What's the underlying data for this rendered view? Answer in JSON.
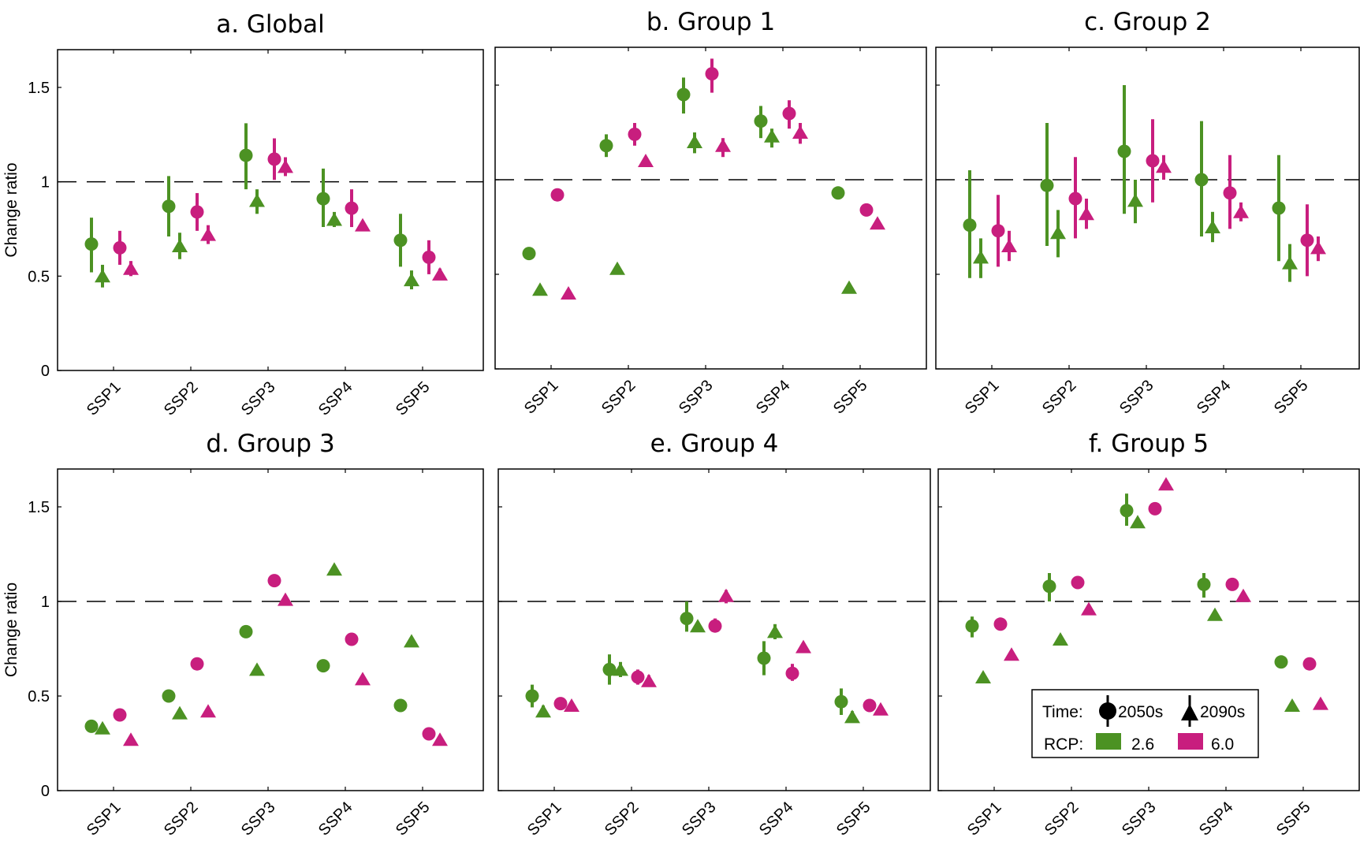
{
  "chart_data": [
    {
      "type": "scatter",
      "title": "a. Global",
      "ylabel": "Change ratio",
      "xlabel": "",
      "categories": [
        "SSP1",
        "SSP2",
        "SSP3",
        "SSP4",
        "SSP5"
      ],
      "ylim": [
        0,
        1.7
      ],
      "yticks": [
        0,
        0.5,
        1,
        1.5
      ],
      "ytick_labels": [
        "0",
        "0.5",
        "1",
        "1.5"
      ],
      "reference_line": 1,
      "series": [
        {
          "name": "RCP 2.6 2050s",
          "rcp": "2.6",
          "time": "2050s",
          "values": [
            0.67,
            0.87,
            1.14,
            0.91,
            0.69
          ],
          "low": [
            0.52,
            0.71,
            0.96,
            0.76,
            0.55
          ],
          "high": [
            0.81,
            1.03,
            1.31,
            1.07,
            0.83
          ]
        },
        {
          "name": "RCP 2.6 2090s",
          "rcp": "2.6",
          "time": "2090s",
          "values": [
            0.5,
            0.66,
            0.9,
            0.8,
            0.48
          ],
          "low": [
            0.44,
            0.59,
            0.83,
            0.76,
            0.43
          ],
          "high": [
            0.56,
            0.73,
            0.96,
            0.84,
            0.53
          ]
        },
        {
          "name": "RCP 6.0 2050s",
          "rcp": "6.0",
          "time": "2050s",
          "values": [
            0.65,
            0.84,
            1.12,
            0.86,
            0.6
          ],
          "low": [
            0.56,
            0.74,
            1.01,
            0.76,
            0.51
          ],
          "high": [
            0.74,
            0.94,
            1.23,
            0.96,
            0.69
          ]
        },
        {
          "name": "RCP 6.0 2090s",
          "rcp": "6.0",
          "time": "2090s",
          "values": [
            0.54,
            0.72,
            1.08,
            0.77,
            0.51
          ],
          "low": [
            0.5,
            0.67,
            1.03,
            0.75,
            0.49
          ],
          "high": [
            0.58,
            0.77,
            1.13,
            0.79,
            0.54
          ]
        }
      ]
    },
    {
      "type": "scatter",
      "title": "b. Group 1",
      "ylabel": "",
      "xlabel": "",
      "categories": [
        "SSP1",
        "SSP2",
        "SSP3",
        "SSP4",
        "SSP5"
      ],
      "ylim": [
        0,
        1.7
      ],
      "yticks": [
        0,
        0.5,
        1,
        1.5
      ],
      "ytick_labels": [],
      "reference_line": 1,
      "series": [
        {
          "name": "RCP 2.6 2050s",
          "rcp": "2.6",
          "time": "2050s",
          "values": [
            0.61,
            1.18,
            1.45,
            1.31,
            0.93
          ],
          "low": [
            null,
            1.12,
            1.35,
            1.22,
            null
          ],
          "high": [
            null,
            1.24,
            1.54,
            1.39,
            null
          ]
        },
        {
          "name": "RCP 2.6 2090s",
          "rcp": "2.6",
          "time": "2090s",
          "values": [
            0.42,
            0.53,
            1.2,
            1.23,
            0.43
          ],
          "low": [
            null,
            null,
            1.14,
            1.17,
            null
          ],
          "high": [
            null,
            null,
            1.25,
            1.27,
            null
          ]
        },
        {
          "name": "RCP 6.0 2050s",
          "rcp": "6.0",
          "time": "2050s",
          "values": [
            0.92,
            1.24,
            1.56,
            1.35,
            0.84
          ],
          "low": [
            null,
            1.18,
            1.46,
            1.27,
            null
          ],
          "high": [
            null,
            1.3,
            1.64,
            1.42,
            null
          ]
        },
        {
          "name": "RCP 6.0 2090s",
          "rcp": "6.0",
          "time": "2090s",
          "values": [
            0.4,
            1.1,
            1.18,
            1.25,
            0.77
          ],
          "low": [
            null,
            null,
            1.12,
            1.19,
            null
          ],
          "high": [
            null,
            null,
            1.22,
            1.3,
            null
          ]
        }
      ]
    },
    {
      "type": "scatter",
      "title": "c. Group 2",
      "ylabel": "",
      "xlabel": "",
      "categories": [
        "SSP1",
        "SSP2",
        "SSP3",
        "SSP4",
        "SSP5"
      ],
      "ylim": [
        0,
        1.7
      ],
      "yticks": [
        0,
        0.5,
        1,
        1.5
      ],
      "ytick_labels": [],
      "reference_line": 1,
      "series": [
        {
          "name": "RCP 2.6 2050s",
          "rcp": "2.6",
          "time": "2050s",
          "values": [
            0.76,
            0.97,
            1.15,
            1.0,
            0.85
          ],
          "low": [
            0.48,
            0.65,
            0.82,
            0.7,
            0.57
          ],
          "high": [
            1.05,
            1.3,
            1.5,
            1.31,
            1.13
          ]
        },
        {
          "name": "RCP 2.6 2090s",
          "rcp": "2.6",
          "time": "2090s",
          "values": [
            0.59,
            0.72,
            0.89,
            0.75,
            0.56
          ],
          "low": [
            0.48,
            0.59,
            0.77,
            0.67,
            0.46
          ],
          "high": [
            0.69,
            0.84,
            1.0,
            0.83,
            0.66
          ]
        },
        {
          "name": "RCP 6.0 2050s",
          "rcp": "6.0",
          "time": "2050s",
          "values": [
            0.73,
            0.9,
            1.1,
            0.93,
            0.68
          ],
          "low": [
            0.54,
            0.69,
            0.88,
            0.74,
            0.49
          ],
          "high": [
            0.92,
            1.12,
            1.32,
            1.13,
            0.87
          ]
        },
        {
          "name": "RCP 6.0 2090s",
          "rcp": "6.0",
          "time": "2090s",
          "values": [
            0.65,
            0.82,
            1.07,
            0.83,
            0.64
          ],
          "low": [
            0.57,
            0.74,
            1.0,
            0.78,
            0.57
          ],
          "high": [
            0.73,
            0.9,
            1.13,
            0.88,
            0.7
          ]
        }
      ]
    },
    {
      "type": "scatter",
      "title": "d. Group 3",
      "ylabel": "Change ratio",
      "xlabel": "",
      "categories": [
        "SSP1",
        "SSP2",
        "SSP3",
        "SSP4",
        "SSP5"
      ],
      "ylim": [
        0,
        1.7
      ],
      "yticks": [
        0,
        0.5,
        1,
        1.5
      ],
      "ytick_labels": [
        "0",
        "0.5",
        "1",
        "1.5"
      ],
      "reference_line": 1,
      "series": [
        {
          "name": "RCP 2.6 2050s",
          "rcp": "2.6",
          "time": "2050s",
          "values": [
            0.34,
            0.5,
            0.84,
            0.66,
            0.45
          ],
          "low": [
            null,
            null,
            null,
            null,
            null
          ],
          "high": [
            null,
            null,
            null,
            null,
            null
          ]
        },
        {
          "name": "RCP 2.6 2090s",
          "rcp": "2.6",
          "time": "2090s",
          "values": [
            0.33,
            0.41,
            0.64,
            1.17,
            0.79
          ],
          "low": [
            null,
            null,
            null,
            null,
            null
          ],
          "high": [
            null,
            null,
            null,
            null,
            null
          ]
        },
        {
          "name": "RCP 6.0 2050s",
          "rcp": "6.0",
          "time": "2050s",
          "values": [
            0.4,
            0.67,
            1.11,
            0.8,
            0.3
          ],
          "low": [
            null,
            null,
            null,
            null,
            null
          ],
          "high": [
            null,
            null,
            null,
            null,
            null
          ]
        },
        {
          "name": "RCP 6.0 2090s",
          "rcp": "6.0",
          "time": "2090s",
          "values": [
            0.27,
            0.42,
            1.01,
            0.59,
            0.27
          ],
          "low": [
            null,
            null,
            null,
            null,
            null
          ],
          "high": [
            null,
            null,
            null,
            null,
            null
          ]
        }
      ]
    },
    {
      "type": "scatter",
      "title": "e. Group 4",
      "ylabel": "",
      "xlabel": "",
      "categories": [
        "SSP1",
        "SSP2",
        "SSP3",
        "SSP4",
        "SSP5"
      ],
      "ylim": [
        0,
        1.7
      ],
      "yticks": [
        0,
        0.5,
        1,
        1.5
      ],
      "ytick_labels": [],
      "reference_line": 1,
      "series": [
        {
          "name": "RCP 2.6 2050s",
          "rcp": "2.6",
          "time": "2050s",
          "values": [
            0.5,
            0.64,
            0.91,
            0.7,
            0.47
          ],
          "low": [
            0.44,
            0.56,
            0.84,
            0.61,
            0.4
          ],
          "high": [
            0.56,
            0.72,
            1.0,
            0.79,
            0.54
          ]
        },
        {
          "name": "RCP 2.6 2090s",
          "rcp": "2.6",
          "time": "2090s",
          "values": [
            0.42,
            0.64,
            0.87,
            0.84,
            0.39
          ],
          "low": [
            0.39,
            0.6,
            0.85,
            0.8,
            0.36
          ],
          "high": [
            0.45,
            0.68,
            0.89,
            0.88,
            0.42
          ]
        },
        {
          "name": "RCP 6.0 2050s",
          "rcp": "6.0",
          "time": "2050s",
          "values": [
            0.46,
            0.6,
            0.87,
            0.62,
            0.45
          ],
          "low": [
            null,
            0.56,
            0.84,
            0.58,
            null
          ],
          "high": [
            null,
            0.64,
            0.91,
            0.67,
            null
          ]
        },
        {
          "name": "RCP 6.0 2090s",
          "rcp": "6.0",
          "time": "2090s",
          "values": [
            0.45,
            0.58,
            1.03,
            0.76,
            0.43
          ],
          "low": [
            null,
            0.55,
            0.99,
            null,
            null
          ],
          "high": [
            null,
            0.61,
            1.06,
            null,
            null
          ]
        }
      ]
    },
    {
      "type": "scatter",
      "title": "f. Group 5",
      "ylabel": "",
      "xlabel": "",
      "categories": [
        "SSP1",
        "SSP2",
        "SSP3",
        "SSP4",
        "SSP5"
      ],
      "ylim": [
        0,
        1.7
      ],
      "yticks": [
        0,
        0.5,
        1,
        1.5
      ],
      "ytick_labels": [],
      "reference_line": 1,
      "series": [
        {
          "name": "RCP 2.6 2050s",
          "rcp": "2.6",
          "time": "2050s",
          "values": [
            0.87,
            1.08,
            1.48,
            1.09,
            0.68
          ],
          "low": [
            0.81,
            1.0,
            1.4,
            1.02,
            null
          ],
          "high": [
            0.92,
            1.15,
            1.57,
            1.15,
            null
          ]
        },
        {
          "name": "RCP 2.6 2090s",
          "rcp": "2.6",
          "time": "2090s",
          "values": [
            0.6,
            0.8,
            1.42,
            0.93,
            0.45
          ],
          "low": [
            null,
            null,
            1.39,
            null,
            null
          ],
          "high": [
            null,
            null,
            1.44,
            null,
            null
          ]
        },
        {
          "name": "RCP 6.0 2050s",
          "rcp": "6.0",
          "time": "2050s",
          "values": [
            0.88,
            1.1,
            1.49,
            1.09,
            0.67
          ],
          "low": [
            null,
            null,
            null,
            null,
            null
          ],
          "high": [
            null,
            null,
            null,
            null,
            null
          ]
        },
        {
          "name": "RCP 6.0 2090s",
          "rcp": "6.0",
          "time": "2090s",
          "values": [
            0.72,
            0.96,
            1.62,
            1.03,
            0.46
          ],
          "low": [
            null,
            null,
            null,
            null,
            null
          ],
          "high": [
            null,
            null,
            null,
            null,
            null
          ]
        }
      ]
    }
  ],
  "legend": {
    "placement": "bottom-right of panel f",
    "time_label": "Time:",
    "time_items": [
      {
        "label": "2050s",
        "marker": "circle"
      },
      {
        "label": "2090s",
        "marker": "triangle"
      }
    ],
    "rcp_label": "RCP:",
    "rcp_items": [
      {
        "label": "2.6",
        "color": "#4c9223"
      },
      {
        "label": "6.0",
        "color": "#c81e7e"
      }
    ]
  },
  "colors": {
    "rcp26": "#4c9223",
    "rcp60": "#c81e7e",
    "axis": "#000000",
    "reference_line": "#000000"
  }
}
